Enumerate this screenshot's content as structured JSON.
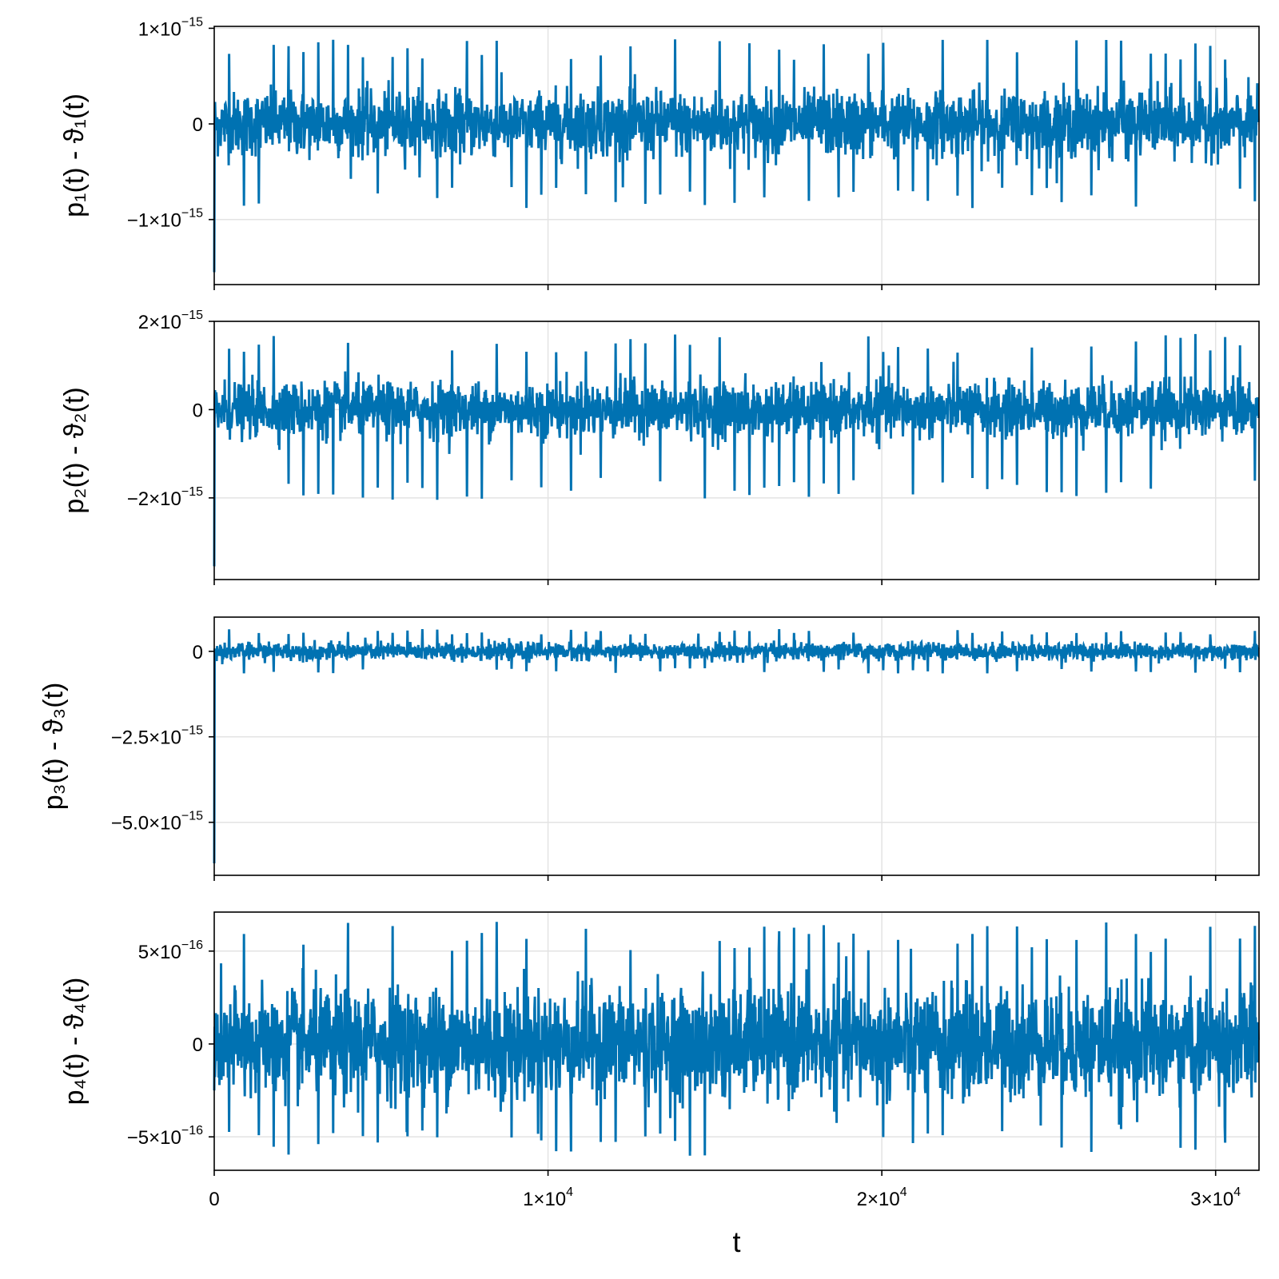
{
  "chart_data": [
    {
      "type": "line",
      "ylabel": "p₁(t) - ϑ₁(t)",
      "xlabel": "",
      "xlim": [
        0,
        31300
      ],
      "ylim": [
        -1.68e-15,
        1.02e-15
      ],
      "xticks": [
        0,
        10000,
        20000,
        30000
      ],
      "yticks": [
        {
          "value": 1e-15,
          "mant": "1×10",
          "exp": "−15"
        },
        {
          "value": 0,
          "mant": "0",
          "exp": ""
        },
        {
          "value": -1e-15,
          "mant": "−1×10",
          "exp": "−15"
        }
      ],
      "series": [
        {
          "color": "#0072b2",
          "amplitude": 3e-16,
          "max": 8.9e-16,
          "min": -8.8e-16,
          "start": -1.55e-15
        }
      ]
    },
    {
      "type": "line",
      "ylabel": "p₂(t) - ϑ₂(t)",
      "xlabel": "",
      "xlim": [
        0,
        31300
      ],
      "ylim": [
        -3.85e-15,
        2e-15
      ],
      "xticks": [
        0,
        10000,
        20000,
        30000
      ],
      "yticks": [
        {
          "value": 2e-15,
          "mant": "2×10",
          "exp": "−15"
        },
        {
          "value": 0,
          "mant": "0",
          "exp": ""
        },
        {
          "value": -2e-15,
          "mant": "−2×10",
          "exp": "−15"
        }
      ],
      "series": [
        {
          "color": "#0072b2",
          "amplitude": 5.5e-16,
          "max": 1.72e-15,
          "min": -2.05e-15,
          "start": -3.55e-15
        }
      ]
    },
    {
      "type": "line",
      "ylabel": "p₃(t) - ϑ₃(t)",
      "xlabel": "",
      "xlim": [
        0,
        31300
      ],
      "ylim": [
        -6.55e-15,
        1e-15
      ],
      "xticks": [
        0,
        10000,
        20000,
        30000
      ],
      "yticks": [
        {
          "value": 0,
          "mant": "0",
          "exp": ""
        },
        {
          "value": -2.5e-15,
          "mant": "−2.5×10",
          "exp": "−15"
        },
        {
          "value": -5e-15,
          "mant": "−5.0×10",
          "exp": "−15"
        }
      ],
      "series": [
        {
          "color": "#0072b2",
          "amplitude": 2.2e-16,
          "max": 6.5e-16,
          "min": -6.5e-16,
          "start": -6.2e-15
        }
      ]
    },
    {
      "type": "line",
      "ylabel": "p₄(t) - ϑ₄(t)",
      "xlabel": "t",
      "xlim": [
        0,
        31300
      ],
      "ylim": [
        -6.8e-16,
        7.1e-16
      ],
      "xticks": [
        0,
        10000,
        20000,
        30000
      ],
      "yticks": [
        {
          "value": 5e-16,
          "mant": "5×10",
          "exp": "−16"
        },
        {
          "value": 0,
          "mant": "0",
          "exp": ""
        },
        {
          "value": -5e-16,
          "mant": "−5×10",
          "exp": "−16"
        }
      ],
      "series": [
        {
          "color": "#0072b2",
          "amplitude": 2.6e-16,
          "max": 6.6e-16,
          "min": -6.1e-16,
          "start": -2.5e-16
        }
      ]
    }
  ],
  "x_tick_labels": [
    {
      "mant": "0",
      "exp": ""
    },
    {
      "mant": "1×10",
      "exp": "4"
    },
    {
      "mant": "2×10",
      "exp": "4"
    },
    {
      "mant": "3×10",
      "exp": "4"
    }
  ],
  "colors": {
    "series": "#0072b2",
    "grid": "#e3e3e3"
  }
}
